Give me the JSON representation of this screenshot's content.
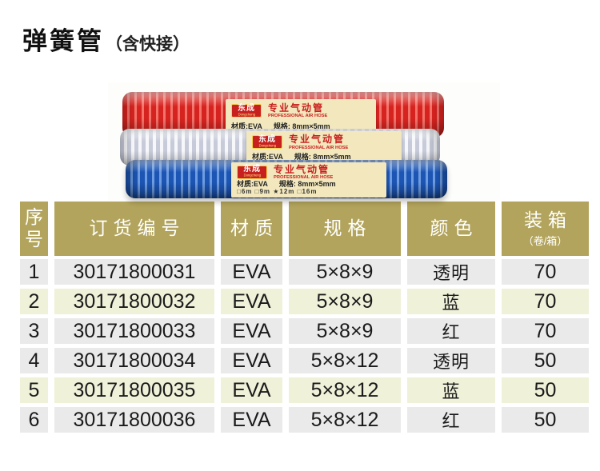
{
  "page_title": {
    "title": "弹簧管",
    "subtitle": "（含快接）"
  },
  "photo": {
    "label": {
      "brand": "东成",
      "brand_en": "Dongcheng",
      "name": "专业气动管",
      "name_en": "PROFESSIONAL AIR HOSE",
      "material": "材质:EVA",
      "spec": "规格: 8mm×5mm",
      "lengths": "□6m  □9m  ★12m  □16m"
    }
  },
  "table": {
    "headers": [
      {
        "text": "序\n号"
      },
      {
        "text": "订货编号"
      },
      {
        "text": "材质"
      },
      {
        "text": "规格"
      },
      {
        "text": "颜色"
      },
      {
        "text": "装箱",
        "sub": "（卷/箱）"
      }
    ],
    "rows": [
      {
        "tone": "gray",
        "cells": [
          "1",
          "30171800031",
          "EVA",
          "5×8×9",
          "透明",
          "70"
        ]
      },
      {
        "tone": "cream",
        "cells": [
          "2",
          "30171800032",
          "EVA",
          "5×8×9",
          "蓝",
          "70"
        ]
      },
      {
        "tone": "gray",
        "cells": [
          "3",
          "30171800033",
          "EVA",
          "5×8×9",
          "红",
          "70"
        ]
      },
      {
        "tone": "gray",
        "cells": [
          "4",
          "30171800034",
          "EVA",
          "5×8×12",
          "透明",
          "50"
        ]
      },
      {
        "tone": "cream",
        "cells": [
          "5",
          "30171800035",
          "EVA",
          "5×8×12",
          "蓝",
          "50"
        ]
      },
      {
        "tone": "gray",
        "cells": [
          "6",
          "30171800036",
          "EVA",
          "5×8×12",
          "红",
          "50"
        ]
      }
    ]
  },
  "colors": {
    "header_bg": "#b2a45c",
    "header_text": "#ffffff",
    "row_gray": "#e9eae9",
    "row_cream": "#f0f1d9",
    "cell_text": "#1a1a1a",
    "hose_red": "#d7231f",
    "hose_blue": "#1c55b4",
    "label_bg": "#f3e8bd",
    "brand_red": "#c8201f"
  }
}
